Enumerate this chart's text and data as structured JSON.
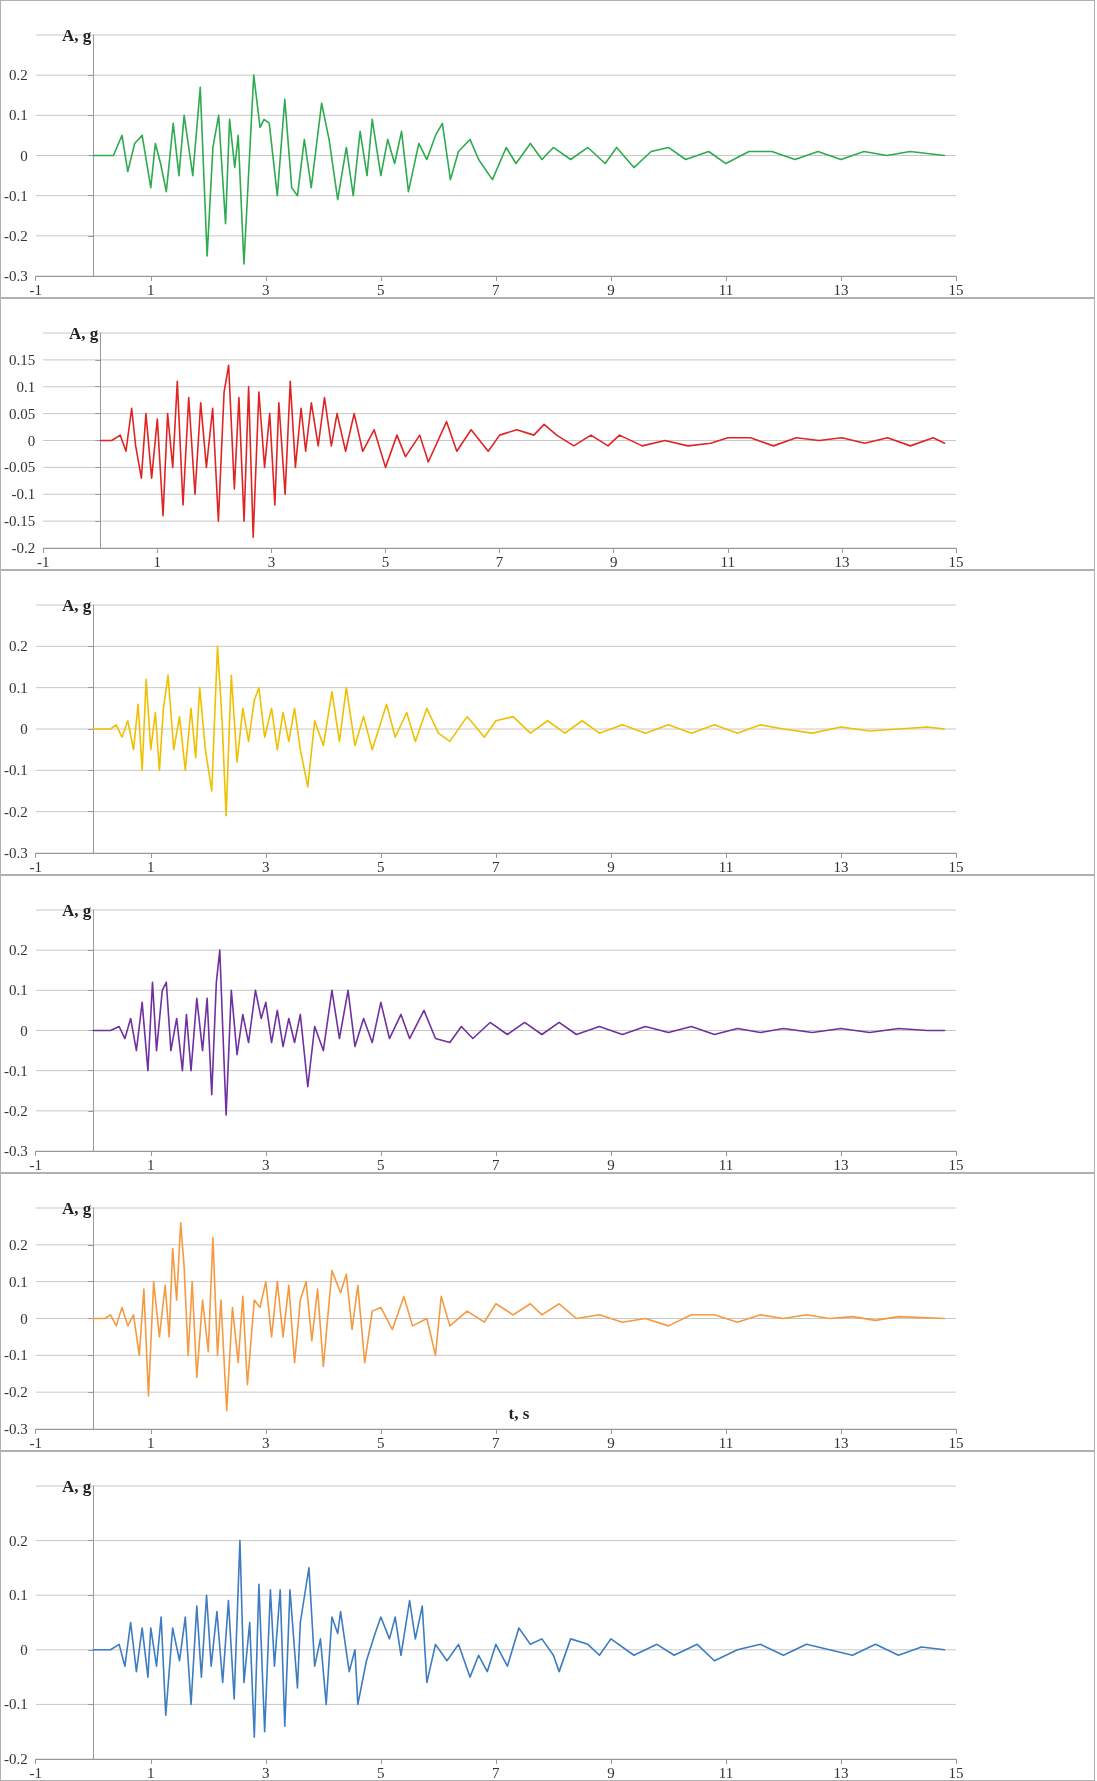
{
  "chart_data": [
    {
      "type": "line",
      "ylabel": "A, g",
      "grid": "y",
      "marker": "none",
      "line_style": "solid",
      "xlim": [
        -1,
        15
      ],
      "xticks": [
        -1,
        1,
        3,
        5,
        7,
        9,
        11,
        13,
        15
      ],
      "ylim": [
        -0.3,
        0.3
      ],
      "yticks": [
        -0.3,
        -0.2,
        -0.1,
        0,
        0.1,
        0.2
      ],
      "series": [
        {
          "color": "#2eaa4f",
          "x": [
            0,
            0.35,
            0.5,
            0.6,
            0.72,
            0.85,
            1.0,
            1.08,
            1.17,
            1.27,
            1.39,
            1.49,
            1.58,
            1.73,
            1.86,
            1.98,
            2.08,
            2.18,
            2.3,
            2.37,
            2.46,
            2.52,
            2.62,
            2.79,
            2.9,
            2.97,
            3.06,
            3.2,
            3.33,
            3.45,
            3.55,
            3.67,
            3.79,
            3.97,
            4.1,
            4.25,
            4.4,
            4.52,
            4.64,
            4.76,
            4.85,
            5.0,
            5.12,
            5.24,
            5.36,
            5.48,
            5.66,
            5.8,
            5.95,
            6.07,
            6.21,
            6.35,
            6.55,
            6.7,
            6.94,
            7.18,
            7.35,
            7.6,
            7.8,
            8.0,
            8.3,
            8.6,
            8.9,
            9.1,
            9.4,
            9.7,
            10.0,
            10.3,
            10.7,
            11.0,
            11.4,
            11.8,
            12.2,
            12.6,
            13.0,
            13.4,
            13.8,
            14.2,
            14.8
          ],
          "values": [
            0,
            0,
            0.05,
            -0.04,
            0.03,
            0.05,
            -0.08,
            0.03,
            -0.02,
            -0.09,
            0.08,
            -0.05,
            0.1,
            -0.05,
            0.17,
            -0.25,
            0.02,
            0.1,
            -0.17,
            0.09,
            -0.03,
            0.05,
            -0.27,
            0.2,
            0.07,
            0.09,
            0.08,
            -0.1,
            0.14,
            -0.08,
            -0.1,
            0.04,
            -0.08,
            0.13,
            0.04,
            -0.11,
            0.02,
            -0.1,
            0.06,
            -0.05,
            0.09,
            -0.05,
            0.04,
            -0.02,
            0.06,
            -0.09,
            0.03,
            -0.01,
            0.05,
            0.08,
            -0.06,
            0.01,
            0.04,
            -0.01,
            -0.06,
            0.02,
            -0.02,
            0.03,
            -0.01,
            0.02,
            -0.01,
            0.02,
            -0.02,
            0.02,
            -0.03,
            0.01,
            0.02,
            -0.01,
            0.01,
            -0.02,
            0.01,
            0.01,
            -0.01,
            0.01,
            -0.01,
            0.01,
            0,
            0.01,
            0
          ]
        }
      ]
    },
    {
      "type": "line",
      "ylabel": "A, g",
      "grid": "y",
      "marker": "none",
      "line_style": "solid",
      "xlim": [
        -1,
        15
      ],
      "xticks": [
        -1,
        1,
        3,
        5,
        7,
        9,
        11,
        13,
        15
      ],
      "ylim": [
        -0.2,
        0.2
      ],
      "yticks": [
        -0.2,
        -0.15,
        -0.1,
        -0.05,
        0,
        0.05,
        0.1,
        0.15
      ],
      "series": [
        {
          "color": "#e02424",
          "x": [
            0,
            0.2,
            0.35,
            0.45,
            0.55,
            0.62,
            0.72,
            0.8,
            0.9,
            1.0,
            1.1,
            1.18,
            1.27,
            1.35,
            1.45,
            1.55,
            1.66,
            1.76,
            1.86,
            1.97,
            2.07,
            2.17,
            2.25,
            2.35,
            2.43,
            2.52,
            2.6,
            2.68,
            2.78,
            2.88,
            2.97,
            3.06,
            3.13,
            3.24,
            3.33,
            3.42,
            3.52,
            3.6,
            3.7,
            3.82,
            3.93,
            4.05,
            4.15,
            4.3,
            4.45,
            4.6,
            4.8,
            5.0,
            5.2,
            5.35,
            5.6,
            5.75,
            6.07,
            6.25,
            6.5,
            6.8,
            7.0,
            7.3,
            7.6,
            7.78,
            8.0,
            8.3,
            8.6,
            8.9,
            9.1,
            9.5,
            9.9,
            10.3,
            10.7,
            11.0,
            11.4,
            11.8,
            12.2,
            12.6,
            13.0,
            13.4,
            13.8,
            14.2,
            14.6,
            14.8
          ],
          "values": [
            0,
            0,
            0.01,
            -0.02,
            0.06,
            -0.01,
            -0.07,
            0.05,
            -0.07,
            0.04,
            -0.14,
            0.05,
            -0.05,
            0.11,
            -0.12,
            0.08,
            -0.1,
            0.07,
            -0.05,
            0.06,
            -0.15,
            0.09,
            0.14,
            -0.09,
            0.08,
            -0.15,
            0.1,
            -0.18,
            0.09,
            -0.05,
            0.05,
            -0.12,
            0.07,
            -0.1,
            0.11,
            -0.05,
            0.06,
            -0.02,
            0.07,
            -0.01,
            0.08,
            -0.01,
            0.05,
            -0.02,
            0.05,
            -0.02,
            0.02,
            -0.05,
            0.01,
            -0.03,
            0.01,
            -0.04,
            0.035,
            -0.02,
            0.02,
            -0.02,
            0.01,
            0.02,
            0.01,
            0.03,
            0.01,
            -0.01,
            0.01,
            -0.01,
            0.01,
            -0.01,
            0,
            -0.01,
            -0.005,
            0.005,
            0.005,
            -0.01,
            0.005,
            0,
            0.005,
            -0.005,
            0.005,
            -0.01,
            0.005,
            -0.005
          ]
        }
      ]
    },
    {
      "type": "line",
      "ylabel": "A, g",
      "grid": "y",
      "marker": "none",
      "line_style": "solid",
      "xlim": [
        -1,
        15
      ],
      "xticks": [
        -1,
        1,
        3,
        5,
        7,
        9,
        11,
        13,
        15
      ],
      "ylim": [
        -0.3,
        0.3
      ],
      "yticks": [
        -0.3,
        -0.2,
        -0.1,
        0,
        0.1,
        0.2
      ],
      "series": [
        {
          "color": "#f0c000",
          "x": [
            0,
            0.3,
            0.4,
            0.5,
            0.6,
            0.7,
            0.78,
            0.85,
            0.92,
            1.0,
            1.08,
            1.15,
            1.22,
            1.3,
            1.4,
            1.5,
            1.6,
            1.7,
            1.78,
            1.85,
            1.95,
            2.06,
            2.16,
            2.24,
            2.31,
            2.4,
            2.5,
            2.6,
            2.7,
            2.8,
            2.88,
            2.98,
            3.1,
            3.2,
            3.3,
            3.4,
            3.5,
            3.6,
            3.73,
            3.85,
            4.0,
            4.15,
            4.28,
            4.4,
            4.55,
            4.7,
            4.85,
            5.1,
            5.25,
            5.45,
            5.6,
            5.8,
            6.0,
            6.2,
            6.5,
            6.8,
            7.0,
            7.3,
            7.6,
            7.9,
            8.2,
            8.5,
            8.8,
            9.2,
            9.6,
            10.0,
            10.4,
            10.8,
            11.2,
            11.6,
            12.0,
            12.5,
            13.0,
            13.5,
            14.0,
            14.5,
            14.8
          ],
          "values": [
            0,
            0,
            0.01,
            -0.02,
            0.02,
            -0.05,
            0.06,
            -0.1,
            0.12,
            -0.05,
            0.04,
            -0.1,
            0.05,
            0.13,
            -0.05,
            0.03,
            -0.1,
            0.05,
            -0.07,
            0.1,
            -0.05,
            -0.15,
            0.2,
            0.02,
            -0.21,
            0.13,
            -0.08,
            0.05,
            -0.03,
            0.07,
            0.1,
            -0.02,
            0.05,
            -0.05,
            0.04,
            -0.03,
            0.05,
            -0.05,
            -0.14,
            0.02,
            -0.04,
            0.09,
            -0.03,
            0.1,
            -0.04,
            0.03,
            -0.05,
            0.06,
            -0.02,
            0.04,
            -0.03,
            0.05,
            -0.01,
            -0.03,
            0.03,
            -0.02,
            0.02,
            0.03,
            -0.01,
            0.02,
            -0.01,
            0.02,
            -0.01,
            0.01,
            -0.01,
            0.01,
            -0.01,
            0.01,
            -0.01,
            0.01,
            0,
            -0.01,
            0.005,
            -0.005,
            0,
            0.005,
            0
          ]
        }
      ]
    },
    {
      "type": "line",
      "ylabel": "A, g",
      "grid": "y",
      "marker": "none",
      "line_style": "solid",
      "xlim": [
        -1,
        15
      ],
      "xticks": [
        -1,
        1,
        3,
        5,
        7,
        9,
        11,
        13,
        15
      ],
      "ylim": [
        -0.3,
        0.3
      ],
      "yticks": [
        -0.3,
        -0.2,
        -0.1,
        0,
        0.1,
        0.2
      ],
      "series": [
        {
          "color": "#7030a0",
          "x": [
            0,
            0.3,
            0.45,
            0.55,
            0.65,
            0.75,
            0.85,
            0.95,
            1.03,
            1.1,
            1.2,
            1.27,
            1.35,
            1.45,
            1.55,
            1.62,
            1.7,
            1.8,
            1.9,
            1.98,
            2.06,
            2.14,
            2.2,
            2.25,
            2.31,
            2.4,
            2.5,
            2.6,
            2.7,
            2.82,
            2.92,
            3.0,
            3.1,
            3.2,
            3.3,
            3.4,
            3.5,
            3.6,
            3.73,
            3.85,
            4.0,
            4.15,
            4.28,
            4.43,
            4.55,
            4.7,
            4.85,
            5.0,
            5.15,
            5.35,
            5.5,
            5.75,
            5.95,
            6.2,
            6.4,
            6.6,
            6.9,
            7.2,
            7.5,
            7.8,
            8.1,
            8.4,
            8.8,
            9.2,
            9.6,
            10.0,
            10.4,
            10.8,
            11.2,
            11.6,
            12.0,
            12.5,
            13.0,
            13.5,
            14.0,
            14.5,
            14.8
          ],
          "values": [
            0,
            0,
            0.01,
            -0.02,
            0.03,
            -0.05,
            0.07,
            -0.1,
            0.12,
            -0.05,
            0.1,
            0.12,
            -0.05,
            0.03,
            -0.1,
            0.04,
            -0.1,
            0.08,
            -0.05,
            0.08,
            -0.16,
            0.12,
            0.2,
            0.01,
            -0.21,
            0.1,
            -0.06,
            0.04,
            -0.03,
            0.1,
            0.03,
            0.07,
            -0.03,
            0.05,
            -0.04,
            0.03,
            -0.03,
            0.04,
            -0.14,
            0.01,
            -0.05,
            0.1,
            -0.02,
            0.1,
            -0.04,
            0.03,
            -0.03,
            0.07,
            -0.02,
            0.04,
            -0.02,
            0.05,
            -0.02,
            -0.03,
            0.01,
            -0.02,
            0.02,
            -0.01,
            0.02,
            -0.01,
            0.02,
            -0.01,
            0.01,
            -0.01,
            0.01,
            -0.005,
            0.01,
            -0.01,
            0.005,
            -0.005,
            0.005,
            -0.005,
            0.005,
            -0.005,
            0.005,
            0,
            0
          ]
        }
      ]
    },
    {
      "type": "line",
      "ylabel": "A, g",
      "xlabel": "t, s",
      "grid": "y",
      "marker": "none",
      "line_style": "solid",
      "xlim": [
        -1,
        15
      ],
      "xticks": [
        -1,
        1,
        3,
        5,
        7,
        9,
        11,
        13,
        15
      ],
      "ylim": [
        -0.3,
        0.3
      ],
      "yticks": [
        -0.3,
        -0.2,
        -0.1,
        0,
        0.1,
        0.2
      ],
      "series": [
        {
          "color": "#f59a40",
          "x": [
            0,
            0.2,
            0.3,
            0.4,
            0.5,
            0.6,
            0.7,
            0.8,
            0.88,
            0.96,
            1.05,
            1.15,
            1.25,
            1.32,
            1.38,
            1.45,
            1.52,
            1.58,
            1.65,
            1.72,
            1.8,
            1.9,
            2.0,
            2.08,
            2.16,
            2.22,
            2.32,
            2.42,
            2.52,
            2.6,
            2.68,
            2.8,
            2.9,
            3.0,
            3.1,
            3.2,
            3.3,
            3.4,
            3.5,
            3.6,
            3.7,
            3.8,
            3.9,
            4.0,
            4.15,
            4.3,
            4.4,
            4.5,
            4.6,
            4.72,
            4.85,
            5.0,
            5.2,
            5.4,
            5.55,
            5.8,
            5.95,
            6.05,
            6.2,
            6.5,
            6.8,
            7.0,
            7.3,
            7.6,
            7.8,
            8.1,
            8.4,
            8.8,
            9.2,
            9.6,
            10.0,
            10.4,
            10.8,
            11.2,
            11.6,
            12.0,
            12.4,
            12.8,
            13.2,
            13.6,
            14.0,
            14.8
          ],
          "values": [
            0,
            0,
            0.01,
            -0.02,
            0.03,
            -0.02,
            0.01,
            -0.1,
            0.08,
            -0.21,
            0.1,
            -0.05,
            0.09,
            -0.05,
            0.19,
            0.05,
            0.26,
            0.14,
            -0.1,
            0.1,
            -0.16,
            0.05,
            -0.09,
            0.22,
            -0.1,
            0.05,
            -0.25,
            0.03,
            -0.12,
            0.06,
            -0.18,
            0.05,
            0.03,
            0.1,
            -0.05,
            0.1,
            -0.05,
            0.09,
            -0.12,
            0.05,
            0.1,
            -0.06,
            0.08,
            -0.13,
            0.13,
            0.07,
            0.12,
            -0.03,
            0.09,
            -0.12,
            0.02,
            0.03,
            -0.03,
            0.06,
            -0.02,
            0,
            -0.1,
            0.06,
            -0.02,
            0.02,
            -0.01,
            0.04,
            0.01,
            0.04,
            0.01,
            0.04,
            0,
            0.01,
            -0.01,
            0,
            -0.02,
            0.01,
            0.01,
            -0.01,
            0.01,
            0,
            0.01,
            0,
            0.005,
            -0.005,
            0.005,
            0
          ]
        }
      ]
    },
    {
      "type": "line",
      "ylabel": "A, g",
      "grid": "y",
      "marker": "none",
      "line_style": "solid",
      "xlim": [
        -1,
        15
      ],
      "xticks": [
        -1,
        1,
        3,
        5,
        7,
        9,
        11,
        13,
        15
      ],
      "ylim": [
        -0.2,
        0.3
      ],
      "yticks": [
        -0.2,
        -0.1,
        0,
        0.1,
        0.2
      ],
      "series": [
        {
          "color": "#3d7cc0",
          "x": [
            0,
            0.3,
            0.45,
            0.55,
            0.65,
            0.75,
            0.85,
            0.95,
            1.0,
            1.1,
            1.18,
            1.26,
            1.38,
            1.5,
            1.6,
            1.7,
            1.8,
            1.88,
            1.97,
            2.05,
            2.15,
            2.25,
            2.35,
            2.45,
            2.55,
            2.62,
            2.72,
            2.8,
            2.88,
            2.98,
            3.08,
            3.15,
            3.25,
            3.33,
            3.42,
            3.55,
            3.6,
            3.75,
            3.85,
            3.95,
            4.05,
            4.15,
            4.25,
            4.3,
            4.45,
            4.55,
            4.6,
            4.75,
            4.9,
            5.0,
            5.15,
            5.25,
            5.35,
            5.5,
            5.6,
            5.72,
            5.8,
            5.95,
            6.15,
            6.35,
            6.55,
            6.7,
            6.85,
            7.0,
            7.2,
            7.4,
            7.6,
            7.8,
            8.0,
            8.1,
            8.3,
            8.6,
            8.8,
            9.0,
            9.4,
            9.8,
            10.1,
            10.5,
            10.8,
            11.2,
            11.6,
            12.0,
            12.4,
            12.8,
            13.2,
            13.6,
            14.0,
            14.4,
            14.8
          ],
          "values": [
            0,
            0,
            0.01,
            -0.03,
            0.05,
            -0.04,
            0.04,
            -0.05,
            0.04,
            -0.03,
            0.06,
            -0.12,
            0.04,
            -0.02,
            0.06,
            -0.1,
            0.08,
            -0.05,
            0.1,
            -0.03,
            0.07,
            -0.06,
            0.09,
            -0.09,
            0.2,
            -0.06,
            0.05,
            -0.16,
            0.12,
            -0.15,
            0.11,
            -0.03,
            0.11,
            -0.14,
            0.11,
            -0.07,
            0.05,
            0.15,
            -0.03,
            0.02,
            -0.1,
            0.06,
            0.03,
            0.07,
            -0.04,
            0,
            -0.1,
            -0.02,
            0.03,
            0.06,
            0.02,
            0.06,
            -0.01,
            0.09,
            0.02,
            0.08,
            -0.06,
            0.01,
            -0.02,
            0.01,
            -0.05,
            -0.01,
            -0.04,
            0.01,
            -0.03,
            0.04,
            0.01,
            0.02,
            -0.01,
            -0.04,
            0.02,
            0.01,
            -0.01,
            0.02,
            -0.01,
            0.01,
            -0.01,
            0.01,
            -0.02,
            0,
            0.01,
            -0.01,
            0.01,
            0,
            -0.01,
            0.01,
            -0.01,
            0.005,
            0
          ]
        }
      ]
    }
  ]
}
